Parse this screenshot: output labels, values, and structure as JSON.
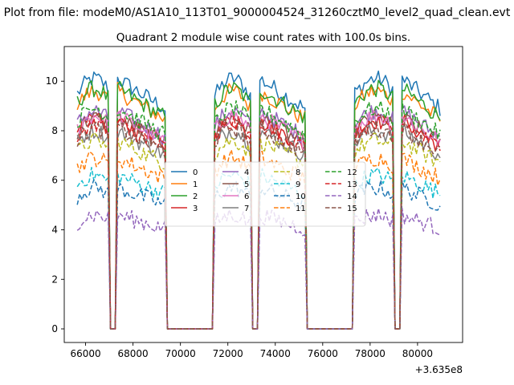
{
  "chart_data": {
    "type": "line",
    "suptitle": "Plot from file: modeM0/AS1A10_113T01_9000004524_31260cztM0_level2_quad_clean.evt",
    "title": "Quadrant 2 module wise count rates with 100.0s bins.",
    "xlabel": "",
    "ylabel": "",
    "x_offset_label": "+3.635e8",
    "xlim": [
      65100,
      81900
    ],
    "ylim": [
      -0.55,
      11.4
    ],
    "xticks": [
      66000,
      68000,
      70000,
      72000,
      74000,
      76000,
      78000,
      80000
    ],
    "yticks": [
      0,
      2,
      4,
      6,
      8,
      10
    ],
    "xtick_labels": [
      "66000",
      "68000",
      "70000",
      "72000",
      "74000",
      "76000",
      "78000",
      "80000"
    ],
    "ytick_labels": [
      "0",
      "2",
      "4",
      "6",
      "8",
      "10"
    ],
    "bin_width_s": 100,
    "legend": {
      "location": "center",
      "columns": 4
    },
    "segments": [
      {
        "x_start": 65650,
        "x_end": 66950,
        "shape": "rise"
      },
      {
        "x_start": 67350,
        "x_end": 69350,
        "shape": "fall"
      },
      {
        "x_start": 71450,
        "x_end": 72950,
        "shape": "hump"
      },
      {
        "x_start": 73350,
        "x_end": 75250,
        "shape": "fall"
      },
      {
        "x_start": 77350,
        "x_end": 78950,
        "shape": "rise"
      },
      {
        "x_start": 79350,
        "x_end": 80950,
        "shape": "fall"
      }
    ],
    "gap_value": 0,
    "series": [
      {
        "name": "0",
        "color": "#1f77b4",
        "linestyle": "solid",
        "mean_level": 10.1
      },
      {
        "name": "1",
        "color": "#ff7f0e",
        "linestyle": "solid",
        "mean_level": 9.6
      },
      {
        "name": "2",
        "color": "#2ca02c",
        "linestyle": "solid",
        "mean_level": 9.7
      },
      {
        "name": "3",
        "color": "#d62728",
        "linestyle": "solid",
        "mean_level": 8.4
      },
      {
        "name": "4",
        "color": "#9467bd",
        "linestyle": "solid",
        "mean_level": 8.8
      },
      {
        "name": "5",
        "color": "#8c564b",
        "linestyle": "solid",
        "mean_level": 8.5
      },
      {
        "name": "6",
        "color": "#e377c2",
        "linestyle": "solid",
        "mean_level": 8.6
      },
      {
        "name": "7",
        "color": "#7f7f7f",
        "linestyle": "solid",
        "mean_level": 8.0
      },
      {
        "name": "8",
        "color": "#bcbd22",
        "linestyle": "dashed",
        "mean_level": 7.6
      },
      {
        "name": "9",
        "color": "#17becf",
        "linestyle": "dashed",
        "mean_level": 6.2
      },
      {
        "name": "10",
        "color": "#1f77b4",
        "linestyle": "dashed",
        "mean_level": 5.7
      },
      {
        "name": "11",
        "color": "#ff7f0e",
        "linestyle": "dashed",
        "mean_level": 6.9
      },
      {
        "name": "12",
        "color": "#2ca02c",
        "linestyle": "dashed",
        "mean_level": 8.9
      },
      {
        "name": "13",
        "color": "#d62728",
        "linestyle": "dashed",
        "mean_level": 8.3
      },
      {
        "name": "14",
        "color": "#9467bd",
        "linestyle": "dashed",
        "mean_level": 4.6
      },
      {
        "name": "15",
        "color": "#8c564b",
        "linestyle": "dashed",
        "mean_level": 8.1
      }
    ]
  }
}
